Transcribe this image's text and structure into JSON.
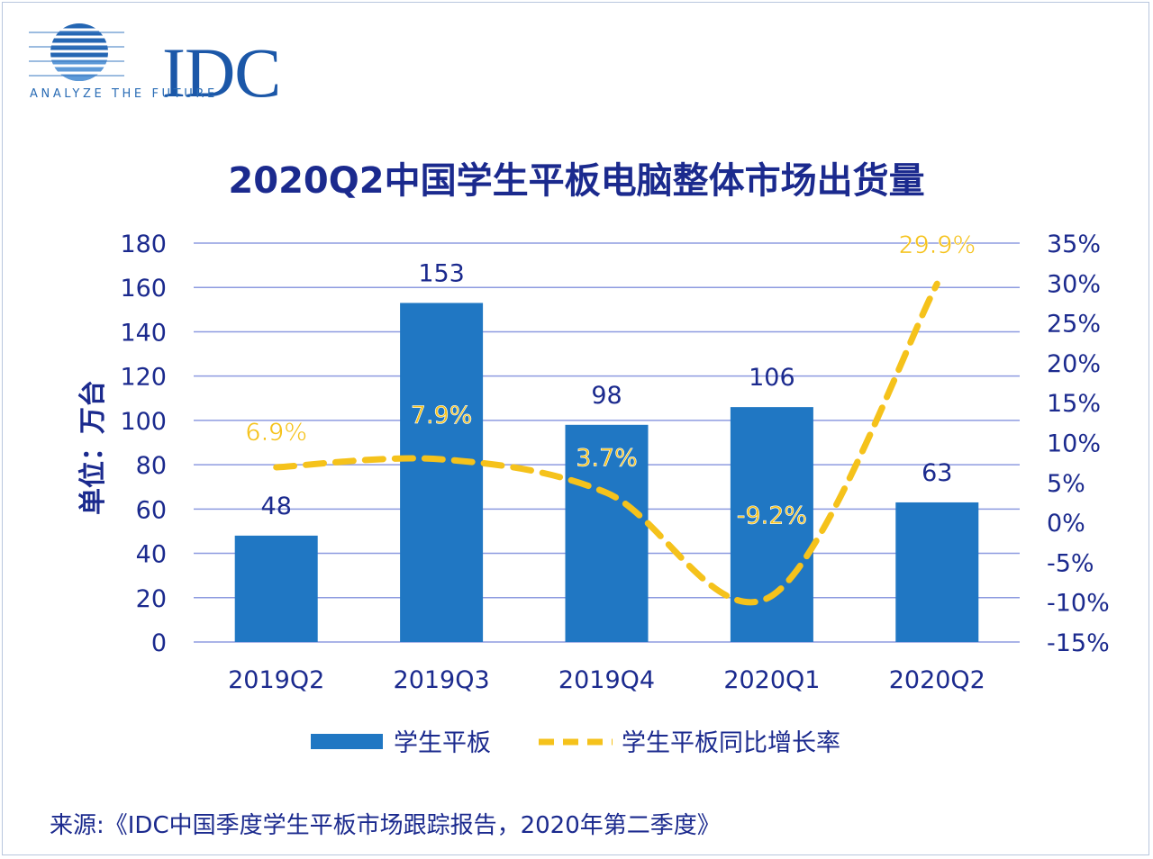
{
  "logo": {
    "text": "IDC",
    "tagline": "ANALYZE THE FUTURE"
  },
  "title": "2020Q2中国学生平板电脑整体市场出货量",
  "source": "来源:《IDC中国季度学生平板市场跟踪报告，2020年第二季度》",
  "chart_data": {
    "type": "bar+line",
    "title": "2020Q2中国学生平板电脑整体市场出货量",
    "categories": [
      "2019Q2",
      "2019Q3",
      "2019Q4",
      "2020Q1",
      "2020Q2"
    ],
    "ylabel": "单位：万台",
    "ylim": [
      0,
      180
    ],
    "yticks": [
      "0",
      "20",
      "40",
      "60",
      "80",
      "100",
      "120",
      "140",
      "160",
      "180"
    ],
    "y2lim": [
      -15,
      35
    ],
    "y2ticks": [
      "-15%",
      "-10%",
      "-5%",
      "0%",
      "5%",
      "10%",
      "15%",
      "20%",
      "25%",
      "30%",
      "35%"
    ],
    "grid": true,
    "legend_position": "bottom",
    "series": [
      {
        "name": "学生平板",
        "type": "bar",
        "axis": "left",
        "values": [
          48,
          153,
          98,
          106,
          63
        ],
        "labels": [
          "48",
          "153",
          "98",
          "106",
          "63"
        ],
        "color": "#2077c3"
      },
      {
        "name": "学生平板同比增长率",
        "type": "line",
        "style": "dashed",
        "axis": "right",
        "values": [
          6.9,
          7.9,
          3.7,
          -9.2,
          29.9
        ],
        "labels": [
          "6.9%",
          "7.9%",
          "3.7%",
          "-9.2%",
          "29.9%"
        ],
        "color": "#f5c21b"
      }
    ]
  }
}
